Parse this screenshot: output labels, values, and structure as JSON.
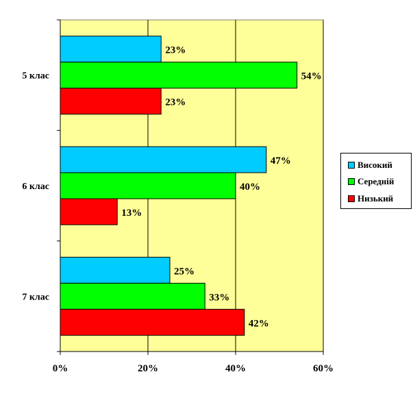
{
  "chart_data": {
    "type": "bar",
    "orientation": "horizontal",
    "categories": [
      "5 клас",
      "6 клас",
      "7 клас"
    ],
    "series": [
      {
        "name": "Високий",
        "color": "#00ccff",
        "values": [
          23,
          47,
          25
        ],
        "labels": [
          "23%",
          "47%",
          "25%"
        ]
      },
      {
        "name": "Середній",
        "color": "#00ff00",
        "values": [
          54,
          40,
          33
        ],
        "labels": [
          "54%",
          "40%",
          "33%"
        ]
      },
      {
        "name": "Низький",
        "color": "#ff0000",
        "values": [
          23,
          13,
          42
        ],
        "labels": [
          "23%",
          "13%",
          "42%"
        ]
      }
    ],
    "x_ticks": [
      "0%",
      "20%",
      "40%",
      "60%"
    ],
    "xlim": [
      0,
      60
    ],
    "grid": true,
    "plot_background": "#ffff99",
    "legend_position": "right"
  }
}
